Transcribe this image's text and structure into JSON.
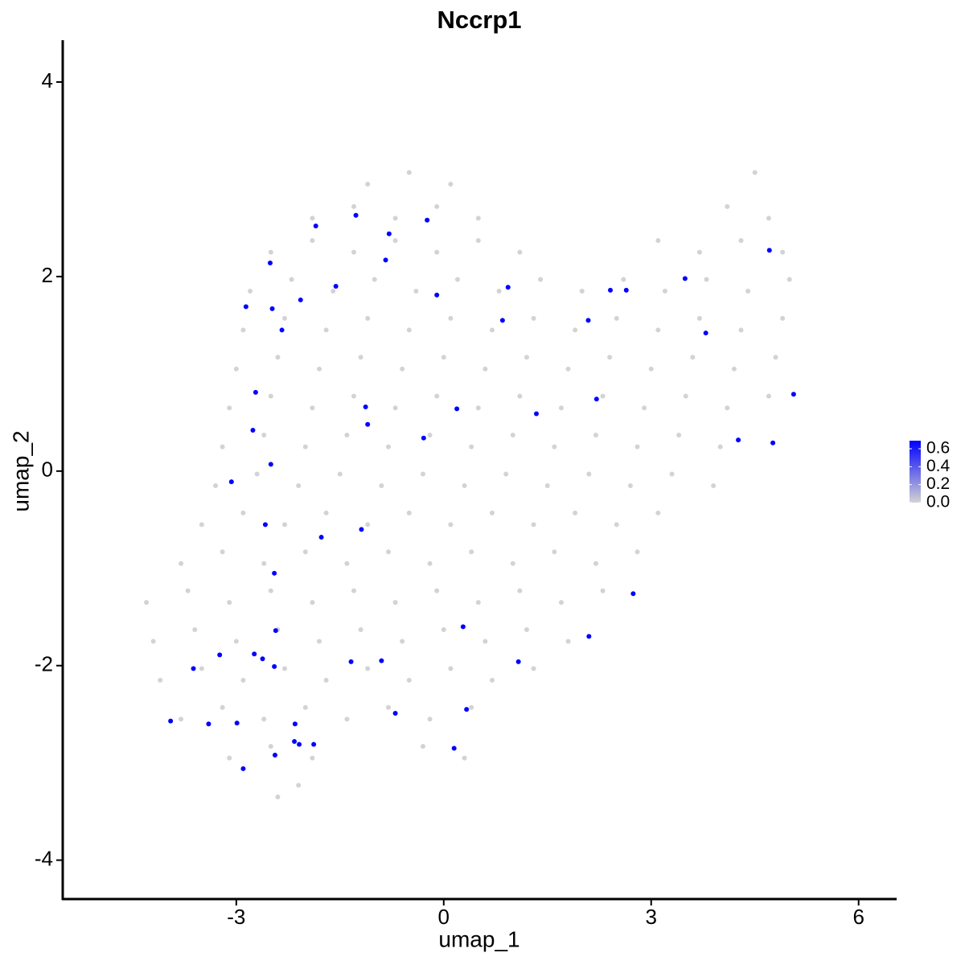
{
  "chart_data": {
    "type": "scatter",
    "title": "Nccrp1",
    "x_label": "umap_1",
    "y_label": "umap_2",
    "xlim": [
      -5.51,
      6.55
    ],
    "ylim": [
      -4.4,
      4.43
    ],
    "xticks": [
      -3,
      0,
      3,
      6
    ],
    "yticks": [
      -4,
      -2,
      0,
      2,
      4
    ],
    "low_color": "#d3d3d3",
    "high_color": "#0000ff",
    "color_lim": [
      0,
      0.69
    ],
    "color_ticks": [
      {
        "value": 0,
        "label": "0.0"
      },
      {
        "value": 0.2,
        "label": "0.2"
      },
      {
        "value": 0.4,
        "label": "0.4"
      },
      {
        "value": 0.6,
        "label": "0.6"
      }
    ],
    "x": [
      -1.1,
      -0.5,
      0.1,
      4.5,
      -1.9,
      -1.3,
      -0.7,
      -0.1,
      0.5,
      4.1,
      4.7,
      -2.5,
      -1.9,
      -1.3,
      -0.7,
      -0.1,
      0.5,
      1.1,
      3.1,
      3.7,
      4.3,
      4.9,
      -2.8,
      -2.2,
      -1.6,
      -1.0,
      -0.4,
      0.2,
      0.8,
      1.4,
      2.0,
      2.6,
      3.2,
      3.8,
      4.4,
      5.0,
      -2.9,
      -2.3,
      -1.7,
      -1.1,
      -0.5,
      0.1,
      0.7,
      1.3,
      1.9,
      2.5,
      3.1,
      3.7,
      4.3,
      4.9,
      -3.0,
      -2.4,
      -1.8,
      -1.2,
      -0.6,
      0.0,
      0.6,
      1.2,
      1.8,
      2.4,
      3.0,
      3.6,
      4.2,
      4.8,
      -3.1,
      -2.5,
      -1.9,
      -1.3,
      -0.7,
      -0.1,
      0.5,
      1.1,
      1.7,
      2.3,
      2.9,
      3.5,
      4.1,
      4.7,
      -3.2,
      -2.6,
      -2.0,
      -1.4,
      -0.8,
      -0.2,
      0.4,
      1.0,
      1.6,
      2.2,
      2.8,
      3.4,
      4.0,
      -3.3,
      -2.7,
      -2.1,
      -1.5,
      -0.9,
      -0.3,
      0.3,
      0.9,
      1.5,
      2.1,
      2.7,
      3.3,
      3.9,
      -3.5,
      -2.9,
      -2.3,
      -1.7,
      -1.1,
      -0.5,
      0.1,
      0.7,
      1.3,
      1.9,
      2.5,
      3.1,
      -3.8,
      -3.2,
      -2.6,
      -2.0,
      -1.4,
      -0.8,
      -0.2,
      0.4,
      1.0,
      1.6,
      2.2,
      2.8,
      -4.3,
      -3.7,
      -3.1,
      -2.5,
      -1.9,
      -1.3,
      -0.7,
      -0.1,
      0.5,
      1.1,
      1.7,
      2.3,
      -4.2,
      -3.6,
      -3.0,
      -2.4,
      -1.8,
      -1.2,
      -0.6,
      0.0,
      0.6,
      1.2,
      1.8,
      -4.1,
      -3.5,
      -2.9,
      -2.3,
      -1.7,
      -1.1,
      -0.5,
      0.1,
      0.7,
      1.3,
      -3.8,
      -3.2,
      -2.6,
      -2.0,
      -1.4,
      -0.8,
      -0.2,
      0.4,
      -3.1,
      -2.5,
      -1.9,
      -0.3,
      0.3,
      -2.4,
      -2.1,
      -1.27,
      -1.85,
      -0.24,
      -0.79,
      -2.51,
      -0.84,
      -1.56,
      -2.07,
      -0.1,
      0.93,
      -2.86,
      -2.48,
      -2.34,
      0.85,
      2.09,
      2.41,
      2.64,
      3.49,
      4.71,
      3.79,
      -2.72,
      -1.13,
      -1.1,
      0.19,
      1.34,
      2.21,
      5.06,
      -2.76,
      -0.29,
      4.26,
      4.76,
      -2.5,
      -3.07,
      -2.58,
      -1.77,
      -1.19,
      -2.45,
      2.74,
      -2.43,
      0.28,
      2.1,
      -3.62,
      -3.24,
      -2.74,
      -2.62,
      -2.45,
      -1.34,
      -0.9,
      1.08,
      -0.7,
      0.33,
      -3.95,
      -3.4,
      -2.99,
      -2.15,
      -2.16,
      -2.09,
      -1.88,
      -2.44,
      0.15,
      -2.9
    ],
    "y": [
      2.95,
      3.07,
      2.95,
      3.07,
      2.6,
      2.72,
      2.6,
      2.72,
      2.6,
      2.72,
      2.6,
      2.25,
      2.37,
      2.25,
      2.37,
      2.25,
      2.37,
      2.25,
      2.37,
      2.25,
      2.37,
      2.25,
      1.85,
      1.97,
      1.85,
      1.97,
      1.85,
      1.97,
      1.85,
      1.97,
      1.85,
      1.97,
      1.85,
      1.97,
      1.85,
      1.97,
      1.45,
      1.57,
      1.45,
      1.57,
      1.45,
      1.57,
      1.45,
      1.57,
      1.45,
      1.57,
      1.45,
      1.57,
      1.45,
      1.57,
      1.05,
      1.17,
      1.05,
      1.17,
      1.05,
      1.17,
      1.05,
      1.17,
      1.05,
      1.17,
      1.05,
      1.17,
      1.05,
      1.17,
      0.65,
      0.77,
      0.65,
      0.77,
      0.65,
      0.77,
      0.65,
      0.77,
      0.65,
      0.77,
      0.65,
      0.77,
      0.65,
      0.77,
      0.25,
      0.37,
      0.25,
      0.37,
      0.25,
      0.37,
      0.25,
      0.37,
      0.25,
      0.37,
      0.25,
      0.37,
      0.25,
      -0.15,
      -0.03,
      -0.15,
      -0.03,
      -0.15,
      -0.03,
      -0.15,
      -0.03,
      -0.15,
      -0.03,
      -0.15,
      -0.03,
      -0.15,
      -0.55,
      -0.43,
      -0.55,
      -0.43,
      -0.55,
      -0.43,
      -0.55,
      -0.43,
      -0.55,
      -0.43,
      -0.55,
      -0.43,
      -0.95,
      -0.83,
      -0.95,
      -0.83,
      -0.95,
      -0.83,
      -0.95,
      -0.83,
      -0.95,
      -0.83,
      -0.95,
      -0.83,
      -1.35,
      -1.23,
      -1.35,
      -1.23,
      -1.35,
      -1.23,
      -1.35,
      -1.23,
      -1.35,
      -1.23,
      -1.35,
      -1.23,
      -1.75,
      -1.63,
      -1.75,
      -1.63,
      -1.75,
      -1.63,
      -1.75,
      -1.63,
      -1.75,
      -1.63,
      -1.75,
      -2.15,
      -2.03,
      -2.15,
      -2.03,
      -2.15,
      -2.03,
      -2.15,
      -2.03,
      -2.15,
      -2.03,
      -2.55,
      -2.43,
      -2.55,
      -2.43,
      -2.55,
      -2.43,
      -2.55,
      -2.43,
      -2.95,
      -2.83,
      -2.95,
      -2.83,
      -2.95,
      -3.35,
      -3.23,
      2.63,
      2.52,
      2.58,
      2.44,
      2.14,
      2.17,
      1.9,
      1.76,
      1.81,
      1.89,
      1.69,
      1.67,
      1.45,
      1.55,
      1.55,
      1.86,
      1.86,
      1.98,
      2.27,
      1.42,
      0.81,
      0.66,
      0.48,
      0.64,
      0.59,
      0.74,
      0.79,
      0.42,
      0.34,
      0.32,
      0.29,
      0.07,
      -0.11,
      -0.55,
      -0.68,
      -0.6,
      -1.05,
      -1.26,
      -1.64,
      -1.6,
      -1.7,
      -2.03,
      -1.89,
      -1.88,
      -1.93,
      -2.01,
      -1.96,
      -1.95,
      -1.96,
      -2.49,
      -2.45,
      -2.57,
      -2.6,
      -2.59,
      -2.6,
      -2.78,
      -2.81,
      -2.81,
      -2.92,
      -2.85,
      -3.06
    ],
    "values": [
      0,
      0,
      0,
      0,
      0,
      0,
      0,
      0,
      0,
      0,
      0,
      0,
      0,
      0,
      0,
      0,
      0,
      0,
      0,
      0,
      0,
      0,
      0,
      0,
      0,
      0,
      0,
      0,
      0,
      0,
      0,
      0,
      0,
      0,
      0,
      0,
      0,
      0,
      0,
      0,
      0,
      0,
      0,
      0,
      0,
      0,
      0,
      0,
      0,
      0,
      0,
      0,
      0,
      0,
      0,
      0,
      0,
      0,
      0,
      0,
      0,
      0,
      0,
      0,
      0,
      0,
      0,
      0,
      0,
      0,
      0,
      0,
      0,
      0,
      0,
      0,
      0,
      0,
      0,
      0,
      0,
      0,
      0,
      0,
      0,
      0,
      0,
      0,
      0,
      0,
      0,
      0,
      0,
      0,
      0,
      0,
      0,
      0,
      0,
      0,
      0,
      0,
      0,
      0,
      0,
      0,
      0,
      0,
      0,
      0,
      0,
      0,
      0,
      0,
      0,
      0,
      0,
      0,
      0,
      0,
      0,
      0,
      0,
      0,
      0,
      0,
      0,
      0,
      0,
      0,
      0,
      0,
      0,
      0,
      0,
      0,
      0,
      0,
      0,
      0,
      0,
      0,
      0,
      0,
      0,
      0,
      0,
      0,
      0,
      0,
      0,
      0,
      0,
      0,
      0,
      0,
      0,
      0,
      0,
      0,
      0,
      0,
      0,
      0,
      0,
      0,
      0,
      0,
      0,
      0,
      0,
      0,
      0,
      0,
      0,
      0,
      0.69,
      0.69,
      0.69,
      0.69,
      0.69,
      0.69,
      0.69,
      0.69,
      0.69,
      0.69,
      0.69,
      0.69,
      0.69,
      0.69,
      0.69,
      0.69,
      0.69,
      0.69,
      0.69,
      0.69,
      0.69,
      0.69,
      0.69,
      0.69,
      0.69,
      0.69,
      0.69,
      0.69,
      0.69,
      0.69,
      0.69,
      0.69,
      0.69,
      0.69,
      0.69,
      0.69,
      0.69,
      0.69,
      0.69,
      0.69,
      0.69,
      0.69,
      0.69,
      0.69,
      0.69,
      0.69,
      0.69,
      0.69,
      0.69,
      0.69,
      0.69,
      0.69,
      0.69,
      0.69,
      0.69,
      0.69,
      0.69,
      0.69,
      0.69,
      0.69,
      0.69
    ]
  }
}
